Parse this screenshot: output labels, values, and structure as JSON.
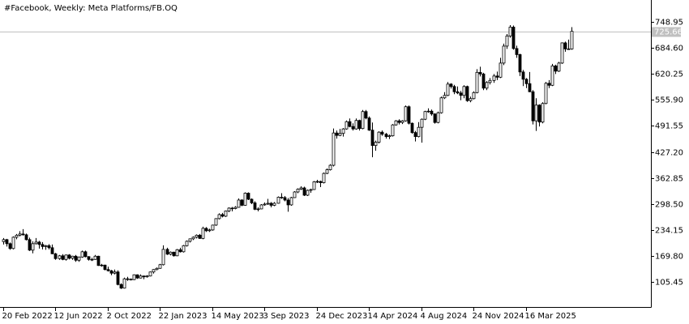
{
  "chart_data": {
    "type": "candlestick",
    "title": "#Facebook, Weekly:  Meta Platforms/FB.OQ",
    "ylim": [
      43.3,
      803.1
    ],
    "yticks": [
      748.95,
      {
        "value": 684.6,
        "label": "684.60"
      },
      {
        "value": 620.25,
        "label": "620.25"
      },
      {
        "value": 555.9,
        "label": "555.90"
      },
      {
        "value": 491.55,
        "label": "491.55"
      },
      {
        "value": 427.2,
        "label": "427.20"
      },
      {
        "value": 362.85,
        "label": "362.85"
      },
      {
        "value": 298.5,
        "label": "298.50"
      },
      {
        "value": 234.15,
        "label": "234.15"
      },
      {
        "value": 169.8,
        "label": "169.80"
      },
      {
        "value": 105.45,
        "label": "105.45"
      }
    ],
    "xticks": [
      "20 Feb 2022",
      "12 Jun 2022",
      "2 Oct 2022",
      "22 Jan 2023",
      "14 May 2023",
      "3 Sep 2023",
      "24 Dec 2023",
      "14 Apr 2024",
      "4 Aug 2024",
      "24 Nov 2024",
      "16 Mar 2025"
    ],
    "last_price": 725.66,
    "color": "#000000",
    "ohlc": [
      [
        205,
        214,
        198,
        210
      ],
      [
        210,
        212,
        193,
        200
      ],
      [
        200,
        203,
        185,
        188
      ],
      [
        188,
        218,
        186,
        216
      ],
      [
        216,
        224,
        211,
        221
      ],
      [
        221,
        231,
        218,
        224
      ],
      [
        224,
        236,
        220,
        222
      ],
      [
        222,
        225,
        208,
        210
      ],
      [
        210,
        215,
        182,
        184
      ],
      [
        184,
        206,
        176,
        200
      ],
      [
        200,
        214,
        198,
        204
      ],
      [
        204,
        207,
        188,
        198
      ],
      [
        198,
        204,
        186,
        193
      ],
      [
        193,
        197,
        185,
        195
      ],
      [
        195,
        199,
        186,
        190
      ],
      [
        190,
        198,
        174,
        175
      ],
      [
        175,
        177,
        160,
        163
      ],
      [
        163,
        172,
        160,
        170
      ],
      [
        170,
        174,
        159,
        161
      ],
      [
        161,
        173,
        158,
        172
      ],
      [
        172,
        174,
        161,
        164
      ],
      [
        164,
        170,
        160,
        169
      ],
      [
        169,
        172,
        155,
        159
      ],
      [
        159,
        168,
        155,
        167
      ],
      [
        167,
        183,
        165,
        180
      ],
      [
        180,
        183,
        166,
        168
      ],
      [
        168,
        169,
        158,
        161
      ],
      [
        161,
        165,
        157,
        161
      ],
      [
        161,
        172,
        160,
        169
      ],
      [
        169,
        170,
        145,
        146
      ],
      [
        146,
        150,
        143,
        147
      ],
      [
        147,
        148,
        134,
        136
      ],
      [
        136,
        143,
        131,
        133
      ],
      [
        133,
        135,
        122,
        127
      ],
      [
        127,
        136,
        124,
        130
      ],
      [
        130,
        134,
        97,
        99
      ],
      [
        99,
        102,
        88,
        90
      ],
      [
        90,
        116,
        89,
        113
      ],
      [
        113,
        118,
        108,
        112
      ],
      [
        112,
        114,
        109,
        111
      ],
      [
        111,
        124,
        110,
        123
      ],
      [
        123,
        124,
        113,
        115
      ],
      [
        115,
        124,
        114,
        120
      ],
      [
        120,
        121,
        112,
        118
      ],
      [
        118,
        122,
        116,
        120
      ],
      [
        120,
        131,
        119,
        130
      ],
      [
        130,
        137,
        126,
        136
      ],
      [
        136,
        141,
        134,
        139
      ],
      [
        139,
        150,
        138,
        148
      ],
      [
        148,
        196,
        146,
        186
      ],
      [
        186,
        190,
        172,
        174
      ],
      [
        174,
        181,
        171,
        179
      ],
      [
        179,
        180,
        168,
        170
      ],
      [
        170,
        187,
        169,
        185
      ],
      [
        185,
        190,
        178,
        180
      ],
      [
        180,
        197,
        178,
        195
      ],
      [
        195,
        208,
        193,
        206
      ],
      [
        206,
        213,
        203,
        212
      ],
      [
        212,
        218,
        209,
        216
      ],
      [
        216,
        223,
        213,
        221
      ],
      [
        221,
        224,
        212,
        213
      ],
      [
        213,
        242,
        211,
        238
      ],
      [
        238,
        241,
        229,
        232
      ],
      [
        232,
        237,
        229,
        234
      ],
      [
        234,
        247,
        232,
        246
      ],
      [
        246,
        263,
        244,
        262
      ],
      [
        262,
        275,
        260,
        272
      ],
      [
        272,
        276,
        265,
        268
      ],
      [
        268,
        282,
        266,
        281
      ],
      [
        281,
        290,
        278,
        288
      ],
      [
        288,
        291,
        280,
        287
      ],
      [
        287,
        293,
        285,
        290
      ],
      [
        290,
        312,
        289,
        308
      ],
      [
        308,
        310,
        293,
        295
      ],
      [
        295,
        327,
        294,
        325
      ],
      [
        325,
        327,
        308,
        310
      ],
      [
        310,
        312,
        298,
        301
      ],
      [
        301,
        305,
        283,
        285
      ],
      [
        285,
        290,
        280,
        286
      ],
      [
        286,
        298,
        285,
        296
      ],
      [
        296,
        302,
        294,
        298
      ],
      [
        298,
        311,
        296,
        300
      ],
      [
        300,
        303,
        290,
        295
      ],
      [
        295,
        303,
        293,
        300
      ],
      [
        300,
        317,
        299,
        315
      ],
      [
        315,
        325,
        311,
        314
      ],
      [
        314,
        318,
        305,
        308
      ],
      [
        308,
        313,
        279,
        296
      ],
      [
        296,
        316,
        294,
        314
      ],
      [
        314,
        330,
        313,
        328
      ],
      [
        328,
        337,
        325,
        335
      ],
      [
        335,
        342,
        333,
        338
      ],
      [
        338,
        341,
        318,
        320
      ],
      [
        320,
        334,
        318,
        332
      ],
      [
        332,
        336,
        326,
        334
      ],
      [
        334,
        355,
        333,
        353
      ],
      [
        353,
        358,
        350,
        354
      ],
      [
        354,
        356,
        340,
        351
      ],
      [
        351,
        376,
        349,
        374
      ],
      [
        374,
        386,
        372,
        383
      ],
      [
        383,
        397,
        381,
        394
      ],
      [
        394,
        485,
        391,
        474
      ],
      [
        474,
        480,
        460,
        468
      ],
      [
        468,
        484,
        466,
        473
      ],
      [
        473,
        486,
        465,
        484
      ],
      [
        484,
        505,
        482,
        502
      ],
      [
        502,
        510,
        488,
        490
      ],
      [
        490,
        498,
        480,
        484
      ],
      [
        484,
        510,
        482,
        505
      ],
      [
        505,
        507,
        480,
        485
      ],
      [
        485,
        531,
        483,
        527
      ],
      [
        527,
        531,
        508,
        511
      ],
      [
        511,
        515,
        479,
        481
      ],
      [
        481,
        500,
        414,
        443
      ],
      [
        443,
        455,
        430,
        451
      ],
      [
        451,
        478,
        448,
        476
      ],
      [
        476,
        480,
        467,
        471
      ],
      [
        471,
        474,
        460,
        465
      ],
      [
        465,
        470,
        459,
        467
      ],
      [
        467,
        496,
        465,
        494
      ],
      [
        494,
        506,
        492,
        504
      ],
      [
        504,
        508,
        495,
        500
      ],
      [
        500,
        506,
        496,
        504
      ],
      [
        504,
        542,
        502,
        539
      ],
      [
        539,
        542,
        495,
        498
      ],
      [
        498,
        500,
        472,
        475
      ],
      [
        475,
        479,
        453,
        465
      ],
      [
        465,
        501,
        463,
        488
      ],
      [
        488,
        510,
        450,
        508
      ],
      [
        508,
        529,
        506,
        527
      ],
      [
        527,
        535,
        524,
        528
      ],
      [
        528,
        532,
        517,
        521
      ],
      [
        521,
        523,
        497,
        500
      ],
      [
        500,
        527,
        498,
        524
      ],
      [
        524,
        564,
        522,
        561
      ],
      [
        561,
        575,
        558,
        567
      ],
      [
        567,
        600,
        565,
        595
      ],
      [
        595,
        597,
        584,
        589
      ],
      [
        589,
        593,
        570,
        576
      ],
      [
        576,
        589,
        570,
        573
      ],
      [
        573,
        578,
        555,
        567
      ],
      [
        567,
        592,
        560,
        589
      ],
      [
        589,
        591,
        551,
        554
      ],
      [
        554,
        564,
        550,
        559
      ],
      [
        559,
        577,
        557,
        574
      ],
      [
        574,
        632,
        572,
        624
      ],
      [
        624,
        638,
        614,
        620
      ],
      [
        620,
        623,
        580,
        585
      ],
      [
        585,
        602,
        580,
        599
      ],
      [
        599,
        610,
        594,
        604
      ],
      [
        604,
        620,
        598,
        615
      ],
      [
        615,
        626,
        605,
        612
      ],
      [
        612,
        660,
        610,
        647
      ],
      [
        647,
        695,
        642,
        689
      ],
      [
        689,
        719,
        682,
        714
      ],
      [
        714,
        741,
        710,
        736
      ],
      [
        736,
        740,
        680,
        683
      ],
      [
        683,
        690,
        660,
        668
      ],
      [
        668,
        670,
        615,
        625
      ],
      [
        625,
        630,
        590,
        607
      ],
      [
        607,
        610,
        585,
        596
      ],
      [
        596,
        625,
        575,
        576
      ],
      [
        576,
        580,
        495,
        504
      ],
      [
        504,
        560,
        479,
        543
      ],
      [
        543,
        545,
        490,
        501
      ],
      [
        501,
        550,
        498,
        547
      ],
      [
        547,
        600,
        545,
        597
      ],
      [
        597,
        605,
        585,
        592
      ],
      [
        592,
        645,
        590,
        640
      ],
      [
        640,
        643,
        620,
        627
      ],
      [
        627,
        650,
        625,
        647
      ],
      [
        647,
        698,
        645,
        697
      ],
      [
        697,
        700,
        675,
        682
      ],
      [
        682,
        705,
        680,
        682
      ],
      [
        682,
        736,
        680,
        725.66
      ]
    ]
  }
}
